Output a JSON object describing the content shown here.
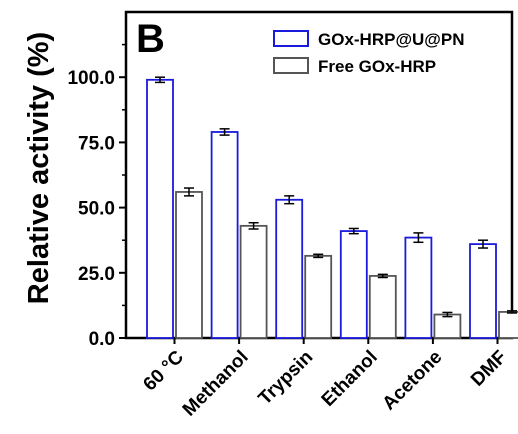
{
  "chart_data": {
    "type": "bar",
    "panel_label": "B",
    "ylabel": "Relative activity (%)",
    "xlabel": "",
    "ylim": [
      0,
      125
    ],
    "yticks": [
      "0.0",
      "25.0",
      "50.0",
      "75.0",
      "100.0"
    ],
    "ytick_values": [
      0,
      25,
      50,
      75,
      100
    ],
    "categories": [
      "60 °C",
      "Methanol",
      "Trypsin",
      "Ethanol",
      "Acetone",
      "DMF"
    ],
    "series": [
      {
        "name": "GOx-HRP@U@PN",
        "color": "#1a1adb",
        "values": [
          99,
          79,
          53,
          41,
          38.5,
          36
        ],
        "errors": [
          1,
          1.2,
          1.5,
          1,
          1.8,
          1.5
        ]
      },
      {
        "name": "Free GOx-HRP",
        "color": "#555555",
        "values": [
          56,
          43,
          31.5,
          23.8,
          9,
          10
        ],
        "errors": [
          1.5,
          1.2,
          0.6,
          0.6,
          0.8,
          0.4
        ]
      }
    ],
    "legend_position": "top-right",
    "grid": false
  }
}
